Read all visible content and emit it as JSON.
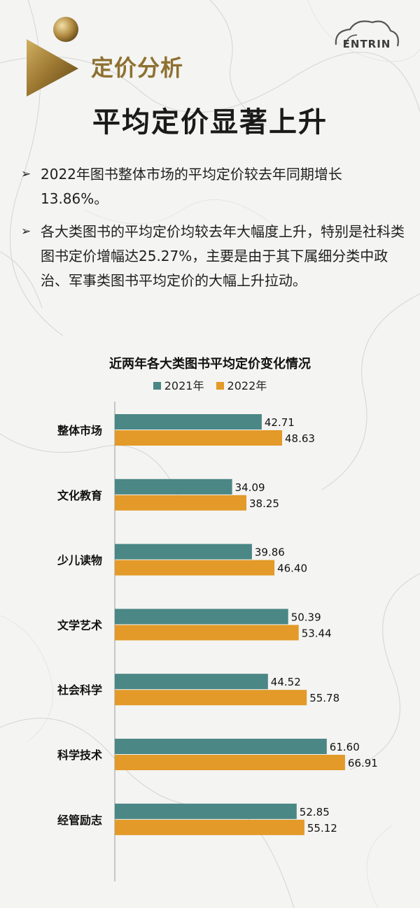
{
  "header": {
    "section_title": "定价分析",
    "logo_text": "ENTRIN",
    "main_title": "平均定价显著上升"
  },
  "bullets": [
    "2022年图书整体市场的平均定价较去年同期增长13.86%。",
    "各大类图书的平均定价均较去年大幅度上升，特别是社科类图书定价增幅达25.27%，主要是由于其下属细分类中政治、军事类图书平均定价的大幅上升拉动。"
  ],
  "colors": {
    "series_2021": "#4a8785",
    "series_2022": "#e39a28",
    "accent_gold": "#8e7030"
  },
  "chart_data": {
    "type": "bar",
    "orientation": "horizontal",
    "title": "近两年各大类图书平均定价变化情况",
    "legend_position": "top",
    "categories": [
      "整体市场",
      "文化教育",
      "少儿读物",
      "文学艺术",
      "社会科学",
      "科学技术",
      "经管励志"
    ],
    "series": [
      {
        "name": "2021年",
        "values": [
          42.71,
          34.09,
          39.86,
          50.39,
          44.52,
          61.6,
          52.85
        ]
      },
      {
        "name": "2022年",
        "values": [
          48.63,
          38.25,
          46.4,
          53.44,
          55.78,
          66.91,
          55.12
        ]
      }
    ],
    "value_labels": [
      [
        "42.71",
        "34.09",
        "39.86",
        "50.39",
        "44.52",
        "61.60",
        "52.85"
      ],
      [
        "48.63",
        "38.25",
        "46.40",
        "53.44",
        "55.78",
        "66.91",
        "55.12"
      ]
    ],
    "xlim": [
      0,
      70
    ],
    "grid": false
  }
}
